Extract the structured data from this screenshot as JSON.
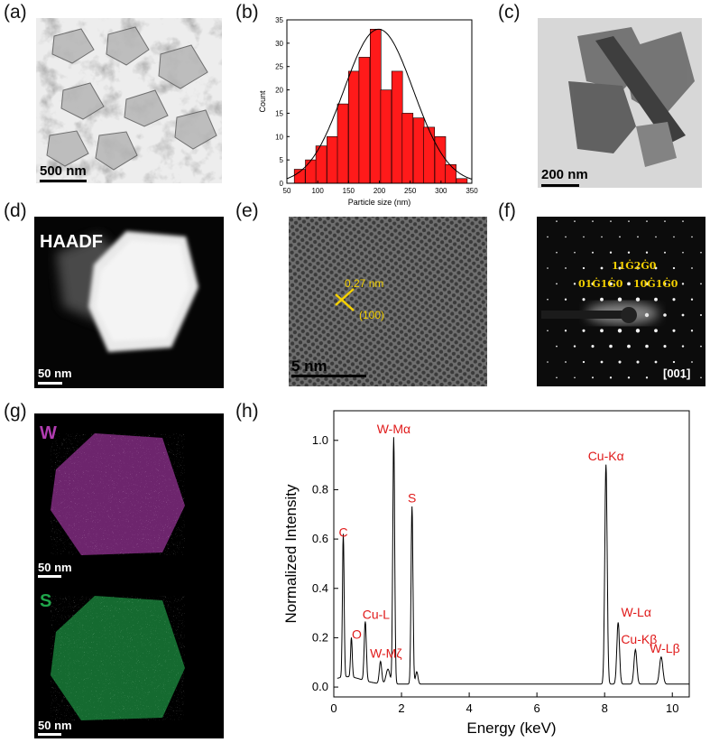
{
  "panels": {
    "a": {
      "label": "(a)",
      "scale": "500 nm"
    },
    "b": {
      "label": "(b)"
    },
    "c": {
      "label": "(c)",
      "scale": "200 nm"
    },
    "d": {
      "label": "(d)",
      "mode": "HAADF",
      "scale": "50 nm"
    },
    "e": {
      "label": "(e)",
      "spacing": "0.27 nm",
      "plane": "(100)",
      "scale": "5 nm"
    },
    "f": {
      "label": "(f)",
      "spot_1": "11Ġ2Ġ0",
      "spot_2": "01Ġ1Ġ0",
      "spot_3": "10Ġ1Ġ0",
      "zone": "[001]"
    },
    "g": {
      "label": "(g)",
      "el1": "W",
      "el2": "S",
      "scale1": "50 nm",
      "scale2": "50 nm",
      "w_color": "#b03cb0",
      "s_color": "#1fa64a"
    },
    "h": {
      "label": "(h)"
    }
  },
  "chart_data": [
    {
      "type": "bar",
      "panel": "b",
      "xlabel": "Particle size (nm)",
      "ylabel": "Count",
      "xlim": [
        50,
        350
      ],
      "ylim": [
        0,
        35
      ],
      "xticks": [
        50,
        100,
        150,
        200,
        250,
        300,
        350
      ],
      "yticks": [
        0,
        5,
        10,
        15,
        20,
        25,
        30,
        35
      ],
      "bin_width": 17.5,
      "bin_starts": [
        62,
        80,
        97,
        115,
        132,
        150,
        167,
        185,
        202,
        220,
        237,
        255,
        272,
        290,
        307,
        325
      ],
      "values": [
        3,
        5,
        8,
        10,
        17,
        24,
        27,
        33,
        20,
        24,
        15,
        14,
        12,
        10,
        4,
        1
      ],
      "fit": "gaussian",
      "bar_color": "#ff1a1a"
    },
    {
      "type": "line",
      "panel": "h",
      "xlabel": "Energy (keV)",
      "ylabel": "Normalized Intensity",
      "xlim": [
        0,
        10.5
      ],
      "ylim": [
        -0.04,
        1.12
      ],
      "xticks": [
        0,
        2,
        4,
        6,
        8,
        10
      ],
      "yticks": [
        0.0,
        0.2,
        0.4,
        0.6,
        0.8,
        1.0
      ],
      "peaks": [
        {
          "label": "C",
          "x": 0.28,
          "y": 0.58
        },
        {
          "label": "O",
          "x": 0.52,
          "y": 0.16
        },
        {
          "label": "Cu-L",
          "x": 0.93,
          "y": 0.24
        },
        {
          "label": "W-Mζ",
          "x": 1.38,
          "y": 0.09
        },
        {
          "label": "W-Mα",
          "x": 1.77,
          "y": 1.0
        },
        {
          "label": "S",
          "x": 2.31,
          "y": 0.72
        },
        {
          "label": "Cu-Kα",
          "x": 8.04,
          "y": 0.89
        },
        {
          "label": "W-Lα",
          "x": 8.4,
          "y": 0.25
        },
        {
          "label": "Cu-Kβ",
          "x": 8.91,
          "y": 0.14
        },
        {
          "label": "W-Lβ",
          "x": 9.67,
          "y": 0.11
        }
      ],
      "label_color": "#e01a1a"
    }
  ]
}
